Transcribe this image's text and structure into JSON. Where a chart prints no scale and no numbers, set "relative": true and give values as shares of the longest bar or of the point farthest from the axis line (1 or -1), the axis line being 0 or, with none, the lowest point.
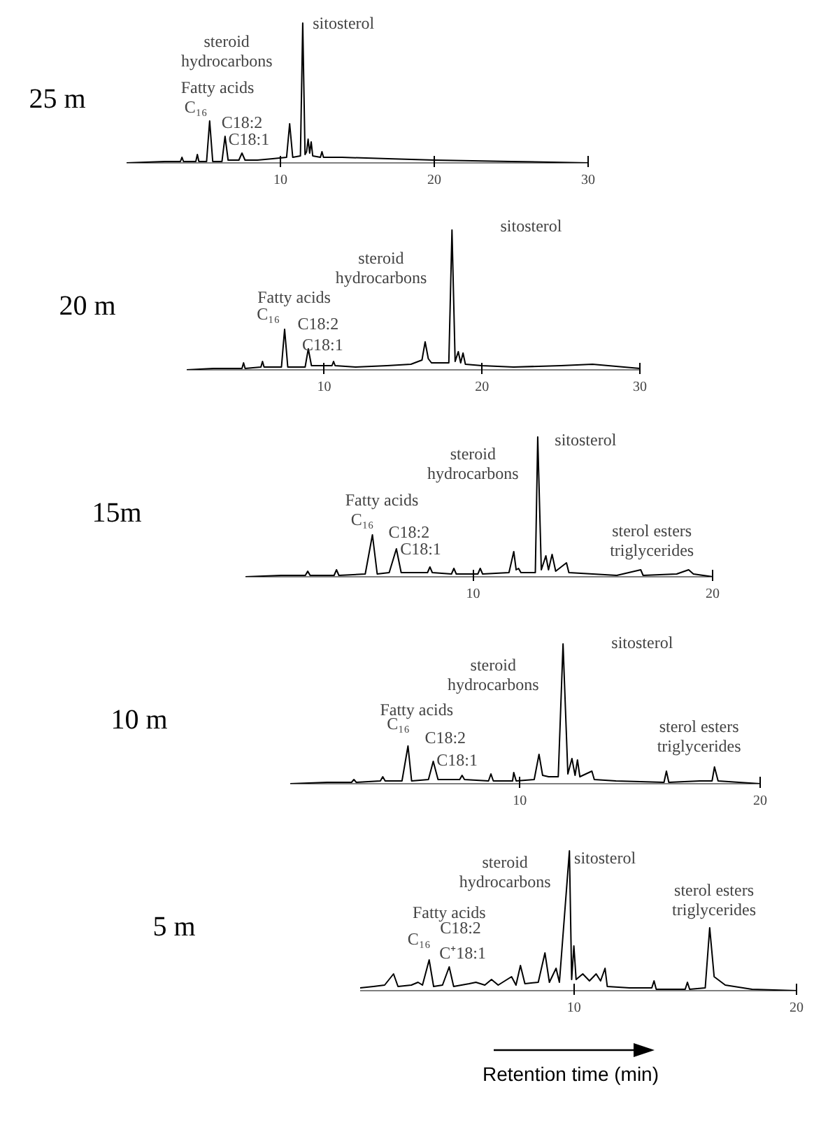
{
  "chart_data": [
    {
      "type": "line",
      "title": "25 m",
      "relative": true,
      "color": "#000000",
      "xlim": [
        0,
        30
      ],
      "xticks": [
        10,
        20,
        30
      ],
      "x": [
        0,
        2.5,
        3.5,
        3.6,
        3.7,
        4.5,
        4.6,
        4.7,
        5.2,
        5.4,
        5.6,
        6.2,
        6.4,
        6.6,
        7.3,
        7.5,
        7.7,
        8.5,
        9.5,
        10.4,
        10.6,
        10.8,
        11.3,
        11.45,
        11.6,
        11.7,
        11.8,
        11.9,
        12.0,
        12.1,
        12.6,
        12.7,
        12.8,
        14,
        17,
        20,
        25,
        30
      ],
      "values": [
        0,
        0.01,
        0.01,
        0.04,
        0.01,
        0.01,
        0.06,
        0.01,
        0.01,
        0.3,
        0.01,
        0.01,
        0.19,
        0.02,
        0.02,
        0.07,
        0.02,
        0.02,
        0.03,
        0.04,
        0.28,
        0.04,
        0.05,
        1.0,
        0.06,
        0.08,
        0.17,
        0.07,
        0.15,
        0.05,
        0.04,
        0.08,
        0.04,
        0.04,
        0.03,
        0.02,
        0.01,
        0
      ],
      "annotations": [
        "sitosterol",
        "steroid\nhydrocarbons",
        "Fatty acids",
        "C₁₆",
        "C18:2",
        "C18:1"
      ]
    },
    {
      "type": "line",
      "title": "20 m",
      "relative": true,
      "color": "#000000",
      "xlim": [
        1.3,
        30
      ],
      "xticks": [
        10,
        20,
        30
      ],
      "x": [
        1.3,
        3,
        4.8,
        4.9,
        5,
        6,
        6.1,
        6.2,
        7.3,
        7.5,
        7.7,
        8.8,
        9.0,
        9.2,
        10.5,
        10.6,
        10.7,
        12,
        14,
        15.5,
        16.2,
        16.4,
        16.6,
        16.8,
        17.9,
        18.1,
        18.3,
        18.5,
        18.65,
        18.8,
        18.95,
        20,
        22,
        25,
        27,
        30
      ],
      "values": [
        0,
        0.01,
        0.01,
        0.05,
        0.01,
        0.02,
        0.06,
        0.02,
        0.02,
        0.29,
        0.02,
        0.02,
        0.15,
        0.03,
        0.03,
        0.06,
        0.03,
        0.02,
        0.03,
        0.04,
        0.07,
        0.2,
        0.08,
        0.05,
        0.05,
        1.0,
        0.06,
        0.13,
        0.05,
        0.12,
        0.04,
        0.03,
        0.02,
        0.03,
        0.04,
        0.01
      ],
      "annotations": [
        "sitosterol",
        "steroid\nhydrocarbons",
        "Fatty acids",
        "C₁₆",
        "C18:2",
        "C18:1"
      ]
    },
    {
      "type": "line",
      "title": "15m",
      "relative": true,
      "color": "#000000",
      "xlim": [
        0.5,
        20
      ],
      "xticks": [
        10,
        20
      ],
      "x": [
        0.5,
        2,
        3,
        3.1,
        3.2,
        4.2,
        4.3,
        4.4,
        5.5,
        5.8,
        6.0,
        6.5,
        6.8,
        7.0,
        8.1,
        8.2,
        8.3,
        9.1,
        9.2,
        9.3,
        10.2,
        10.3,
        10.4,
        11.5,
        11.7,
        11.8,
        11.9,
        12.0,
        12.6,
        12.7,
        12.85,
        13.04,
        13.15,
        13.3,
        13.45,
        13.9,
        14.0,
        15,
        16,
        17.0,
        17.1,
        18.5,
        19.0,
        19.2,
        20
      ],
      "values": [
        0,
        0.01,
        0.01,
        0.04,
        0.01,
        0.01,
        0.05,
        0.01,
        0.02,
        0.3,
        0.02,
        0.03,
        0.2,
        0.03,
        0.03,
        0.07,
        0.03,
        0.02,
        0.06,
        0.02,
        0.02,
        0.06,
        0.02,
        0.03,
        0.18,
        0.05,
        0.06,
        0.03,
        0.03,
        1.0,
        0.05,
        0.15,
        0.05,
        0.16,
        0.04,
        0.1,
        0.03,
        0.02,
        0.01,
        0.05,
        0.01,
        0.02,
        0.05,
        0.02,
        0
      ],
      "annotations": [
        "sitosterol",
        "steroid\nhydrocarbons",
        "Fatty acids",
        "C₁₆",
        "C18:2",
        "C18:1",
        "sterol esters\ntriglycerides"
      ]
    },
    {
      "type": "line",
      "title": "10 m",
      "relative": true,
      "color": "#000000",
      "xlim": [
        0.45,
        20
      ],
      "xticks": [
        10,
        20
      ],
      "x": [
        0.45,
        2,
        3,
        3.1,
        3.2,
        4.2,
        4.3,
        4.4,
        5.1,
        5.35,
        5.5,
        6.2,
        6.4,
        6.6,
        7.5,
        7.6,
        7.7,
        8.7,
        8.8,
        8.9,
        9.7,
        9.75,
        9.85,
        10.6,
        10.8,
        10.95,
        11.2,
        11.6,
        11.8,
        12.0,
        12.17,
        12.3,
        12.4,
        12.5,
        13.0,
        13.1,
        14,
        16.0,
        16.1,
        16.2,
        17.5,
        18.0,
        18.1,
        18.25,
        20
      ],
      "values": [
        0,
        0.01,
        0.01,
        0.03,
        0.01,
        0.02,
        0.05,
        0.02,
        0.02,
        0.27,
        0.02,
        0.03,
        0.16,
        0.03,
        0.03,
        0.06,
        0.03,
        0.02,
        0.07,
        0.02,
        0.02,
        0.08,
        0.02,
        0.03,
        0.21,
        0.06,
        0.05,
        0.05,
        1.0,
        0.07,
        0.18,
        0.06,
        0.17,
        0.05,
        0.09,
        0.03,
        0.02,
        0.01,
        0.09,
        0.01,
        0.02,
        0.02,
        0.12,
        0.02,
        0
      ],
      "annotations": [
        "sitosterol",
        "steroid\nhydrocarbons",
        "Fatty acids",
        "C₁₆",
        "C18:2",
        "C18:1",
        "sterol esters\ntriglycerides"
      ]
    },
    {
      "type": "line",
      "title": "5 m",
      "relative": true,
      "color": "#000000",
      "xlim": [
        0.4,
        20
      ],
      "xticks": [
        10,
        20
      ],
      "xlabel": "Retention time (min)",
      "x": [
        0.4,
        1.0,
        1.5,
        1.9,
        2.1,
        2.7,
        3.0,
        3.2,
        3.5,
        3.7,
        4.1,
        4.4,
        4.6,
        5.3,
        5.6,
        6.0,
        6.3,
        6.6,
        7.2,
        7.4,
        7.6,
        7.8,
        8.4,
        8.7,
        8.9,
        9.2,
        9.35,
        9.8,
        9.9,
        10.0,
        10.1,
        10.4,
        10.7,
        11.0,
        11.2,
        11.4,
        11.5,
        12.5,
        13.5,
        13.6,
        13.7,
        15.0,
        15.1,
        15.2,
        15.9,
        16.1,
        16.3,
        16.8,
        18,
        20
      ],
      "values": [
        0.02,
        0.03,
        0.04,
        0.12,
        0.03,
        0.04,
        0.06,
        0.04,
        0.22,
        0.03,
        0.04,
        0.17,
        0.03,
        0.05,
        0.06,
        0.04,
        0.08,
        0.04,
        0.1,
        0.04,
        0.18,
        0.05,
        0.06,
        0.27,
        0.06,
        0.16,
        0.06,
        1.0,
        0.08,
        0.32,
        0.08,
        0.12,
        0.07,
        0.12,
        0.07,
        0.16,
        0.03,
        0.02,
        0.02,
        0.07,
        0.01,
        0.01,
        0.06,
        0.01,
        0.02,
        0.45,
        0.1,
        0.04,
        0.01,
        0
      ],
      "annotations": [
        "sitosterol",
        "steroid\nhydrocarbons",
        "Fatty acids",
        "C₁₆",
        "C18:2",
        "C⁺18:1",
        "sterol esters\ntriglycerides"
      ]
    }
  ]
}
